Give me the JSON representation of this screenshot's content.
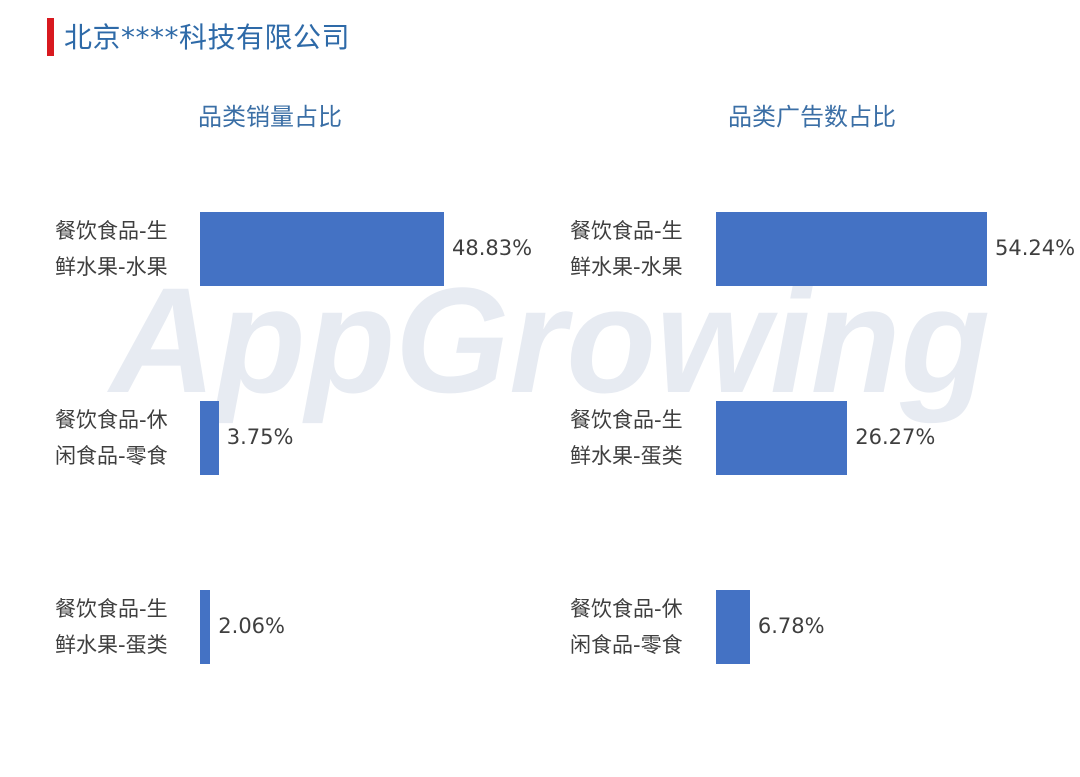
{
  "header": {
    "title": "北京****科技有限公司",
    "accent_color": "#d8191f"
  },
  "watermark": {
    "text": "AppGrowing"
  },
  "chart_data": [
    {
      "type": "bar",
      "orientation": "horizontal",
      "title": "品类销量占比",
      "categories": [
        "餐饮食品-生\n鲜水果-水果",
        "餐饮食品-休\n闲食品-零食",
        "餐饮食品-生\n鲜水果-蛋类"
      ],
      "values": [
        48.83,
        3.75,
        2.06
      ],
      "value_labels": [
        "48.83%",
        "3.75%",
        "2.06%"
      ],
      "unit": "%",
      "bar_color": "#4472c4",
      "grid": false,
      "legend": "none"
    },
    {
      "type": "bar",
      "orientation": "horizontal",
      "title": "品类广告数占比",
      "categories": [
        "餐饮食品-生\n鲜水果-水果",
        "餐饮食品-生\n鲜水果-蛋类",
        "餐饮食品-休\n闲食品-零食"
      ],
      "values": [
        54.24,
        26.27,
        6.78
      ],
      "value_labels": [
        "54.24%",
        "26.27%",
        "6.78%"
      ],
      "unit": "%",
      "bar_color": "#4472c4",
      "grid": false,
      "legend": "none"
    }
  ]
}
